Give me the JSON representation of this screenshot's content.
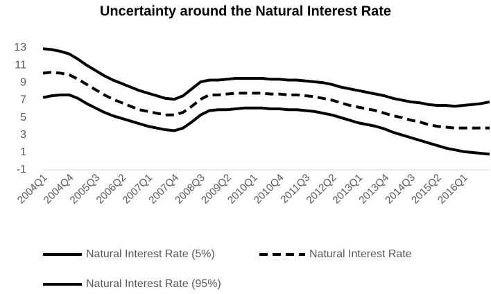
{
  "chart_data": {
    "type": "line",
    "title": "Uncertainty around the Natural Interest Rate",
    "categories": [
      "2004Q1",
      null,
      null,
      "2004Q4",
      null,
      null,
      "2005Q3",
      null,
      null,
      "2006Q2",
      null,
      null,
      "2007Q1",
      null,
      null,
      "2007Q4",
      null,
      null,
      "2008Q3",
      null,
      null,
      "2009Q2",
      null,
      null,
      "2010Q1",
      null,
      null,
      "2010Q4",
      null,
      null,
      "2011Q3",
      null,
      null,
      "2012Q2",
      null,
      null,
      "2013Q1",
      null,
      null,
      "2013Q4",
      null,
      null,
      "2014Q3",
      null,
      null,
      "2015Q2",
      null,
      null,
      "2016Q1",
      null,
      null,
      null
    ],
    "series": [
      {
        "name": "Natural Interest Rate (5%)",
        "color": "#000000",
        "dash": false,
        "values": [
          7.3,
          7.5,
          7.6,
          7.6,
          7.2,
          6.6,
          6.1,
          5.6,
          5.2,
          4.9,
          4.6,
          4.3,
          4.0,
          3.8,
          3.6,
          3.5,
          3.8,
          4.5,
          5.3,
          5.8,
          5.9,
          5.9,
          6.0,
          6.1,
          6.1,
          6.1,
          6.0,
          6.0,
          5.9,
          5.9,
          5.8,
          5.7,
          5.5,
          5.3,
          5.0,
          4.7,
          4.4,
          4.2,
          4.0,
          3.7,
          3.3,
          3.0,
          2.7,
          2.4,
          2.1,
          1.8,
          1.5,
          1.3,
          1.1,
          1.0,
          0.9,
          0.8
        ]
      },
      {
        "name": "Natural Interest Rate",
        "color": "#000000",
        "dash": true,
        "values": [
          10.1,
          10.2,
          10.1,
          9.9,
          9.4,
          8.8,
          8.2,
          7.6,
          7.1,
          6.7,
          6.3,
          5.9,
          5.7,
          5.5,
          5.3,
          5.3,
          5.6,
          6.3,
          7.1,
          7.6,
          7.6,
          7.7,
          7.8,
          7.8,
          7.8,
          7.8,
          7.7,
          7.7,
          7.6,
          7.6,
          7.5,
          7.4,
          7.2,
          7.0,
          6.7,
          6.4,
          6.2,
          6.0,
          5.8,
          5.5,
          5.2,
          5.0,
          4.7,
          4.5,
          4.2,
          4.0,
          3.9,
          3.8,
          3.8,
          3.8,
          3.8,
          3.8
        ]
      },
      {
        "name": "Natural Interest Rate (95%)",
        "color": "#000000",
        "dash": false,
        "values": [
          12.9,
          12.8,
          12.6,
          12.3,
          11.7,
          11.0,
          10.4,
          9.8,
          9.3,
          8.9,
          8.5,
          8.1,
          7.8,
          7.5,
          7.2,
          7.1,
          7.5,
          8.3,
          9.1,
          9.3,
          9.3,
          9.4,
          9.5,
          9.5,
          9.5,
          9.5,
          9.4,
          9.4,
          9.3,
          9.3,
          9.2,
          9.1,
          9.0,
          8.8,
          8.5,
          8.3,
          8.1,
          7.9,
          7.7,
          7.5,
          7.2,
          7.0,
          6.8,
          6.7,
          6.5,
          6.4,
          6.4,
          6.3,
          6.4,
          6.5,
          6.6,
          6.8
        ]
      }
    ],
    "ylim": [
      -1,
      13
    ],
    "yticks": [
      -1,
      1,
      3,
      5,
      7,
      9,
      11,
      13
    ],
    "grid": false,
    "legend": "bottom"
  }
}
